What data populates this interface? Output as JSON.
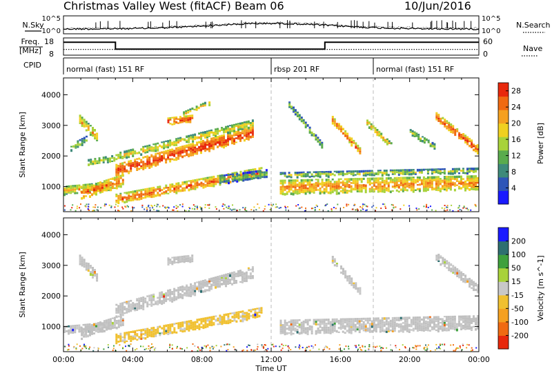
{
  "header": {
    "title": "Christmas Valley West (fitACF)",
    "beam": "Beam 06",
    "date": "10/Jun/2016"
  },
  "noise_panel": {
    "left_label": "N.Sky",
    "right_label": "N.Search",
    "left_ticks": [
      "10^5",
      "10^0"
    ],
    "right_ticks": [
      "10^5",
      "10^0"
    ]
  },
  "freq_panel": {
    "left_label_1": "Freq.",
    "left_label_2": "[MHz]",
    "right_label": "Nave",
    "left_ticks": [
      "18",
      "8"
    ],
    "right_ticks": [
      "60",
      "0"
    ],
    "freq_mhz_segments": [
      {
        "start_h": 0,
        "end_h": 3.0,
        "value": 15.5
      },
      {
        "start_h": 3.0,
        "end_h": 15.1,
        "value": 11.5
      },
      {
        "start_h": 15.1,
        "end_h": 24,
        "value": 15.5
      }
    ],
    "nave_level": 20
  },
  "cpid": {
    "label": "CPID",
    "segments": [
      {
        "label": "normal (fast) 151 RF",
        "start_h": 0,
        "end_h": 12.0
      },
      {
        "label": "rbsp 201 RF",
        "start_h": 12.0,
        "end_h": 17.9
      },
      {
        "label": "normal (fast) 151 RF",
        "start_h": 17.9,
        "end_h": 24
      }
    ]
  },
  "chart_data": [
    {
      "type": "heatmap",
      "name": "power",
      "ylabel": "Slant Range [km]",
      "ylim": [
        180,
        4550
      ],
      "yticks": [
        1000,
        2000,
        3000,
        4000
      ],
      "colorbar_label": "Power [dB]",
      "colorbar_ticks": [
        4,
        8,
        12,
        16,
        20,
        24,
        28
      ],
      "colorbar_range": [
        0,
        30
      ],
      "colors": [
        "#1a1aff",
        "#2e55b8",
        "#3e8a7a",
        "#5aab4d",
        "#a8d23a",
        "#f0d020",
        "#f5a020",
        "#f06a12",
        "#e8280c"
      ],
      "bands": [
        {
          "start_h": 0.0,
          "end_h": 2.8,
          "r_start": 900,
          "r_end": 1050,
          "width": 250,
          "value": 18
        },
        {
          "start_h": 0.9,
          "end_h": 2.0,
          "r_start": 3200,
          "r_end": 2600,
          "width": 300,
          "value": 18
        },
        {
          "start_h": 0.4,
          "end_h": 1.4,
          "r_start": 2300,
          "r_end": 2600,
          "width": 200,
          "value": 12
        },
        {
          "start_h": 1.4,
          "end_h": 3.0,
          "r_start": 1800,
          "r_end": 1950,
          "width": 200,
          "value": 14
        },
        {
          "start_h": 1.0,
          "end_h": 3.5,
          "r_start": 800,
          "r_end": 1250,
          "width": 350,
          "value": 22
        },
        {
          "start_h": 3.0,
          "end_h": 11.0,
          "r_start": 1550,
          "r_end": 2800,
          "width": 380,
          "value": 25
        },
        {
          "start_h": 3.0,
          "end_h": 11.0,
          "r_start": 2000,
          "r_end": 3100,
          "width": 220,
          "value": 16
        },
        {
          "start_h": 3.0,
          "end_h": 11.5,
          "r_start": 620,
          "r_end": 1500,
          "width": 300,
          "value": 22
        },
        {
          "start_h": 6.0,
          "end_h": 7.5,
          "r_start": 3150,
          "r_end": 3250,
          "width": 220,
          "value": 24
        },
        {
          "start_h": 6.9,
          "end_h": 8.5,
          "r_start": 3400,
          "r_end": 3800,
          "width": 120,
          "value": 16
        },
        {
          "start_h": 9.0,
          "end_h": 11.8,
          "r_start": 1250,
          "r_end": 1450,
          "width": 260,
          "value": 10
        },
        {
          "start_h": 12.5,
          "end_h": 24.0,
          "r_start": 1000,
          "r_end": 1150,
          "width": 450,
          "value": 20
        },
        {
          "start_h": 12.5,
          "end_h": 24.0,
          "r_start": 1400,
          "r_end": 1550,
          "width": 150,
          "value": 13
        },
        {
          "start_h": 15.5,
          "end_h": 17.2,
          "r_start": 3200,
          "r_end": 2100,
          "width": 220,
          "value": 22
        },
        {
          "start_h": 17.5,
          "end_h": 19.0,
          "r_start": 3100,
          "r_end": 2300,
          "width": 180,
          "value": 18
        },
        {
          "start_h": 20.0,
          "end_h": 21.5,
          "r_start": 2800,
          "r_end": 2300,
          "width": 160,
          "value": 14
        },
        {
          "start_h": 21.5,
          "end_h": 24.0,
          "r_start": 3300,
          "r_end": 2200,
          "width": 260,
          "value": 24
        },
        {
          "start_h": 13.0,
          "end_h": 15.0,
          "r_start": 3700,
          "r_end": 2300,
          "width": 160,
          "value": 12
        }
      ]
    },
    {
      "type": "heatmap",
      "name": "velocity",
      "ylabel": "Slant Range [km]",
      "ylim": [
        180,
        4550
      ],
      "yticks": [
        1000,
        2000,
        3000,
        4000
      ],
      "colorbar_label": "Velocity [m s^-1]",
      "colorbar_ticks": [
        200,
        100,
        50,
        15,
        -15,
        -50,
        -100,
        -200
      ],
      "colorbar_range": [
        -250,
        250
      ],
      "colors": [
        "#e8280c",
        "#f06a12",
        "#f5a020",
        "#f0c030",
        "#c8c8c8",
        "#a8d23a",
        "#3ea03c",
        "#2e6f70",
        "#1a1aff"
      ],
      "ground_scatter_color": "#c0c0c0",
      "bands": [
        {
          "start_h": 0.0,
          "end_h": 2.8,
          "r_start": 900,
          "r_end": 1050,
          "width": 250,
          "value": 0
        },
        {
          "start_h": 0.9,
          "end_h": 2.0,
          "r_start": 3200,
          "r_end": 2600,
          "width": 300,
          "value": 0
        },
        {
          "start_h": 1.0,
          "end_h": 3.5,
          "r_start": 800,
          "r_end": 1250,
          "width": 350,
          "value": 0
        },
        {
          "start_h": 3.0,
          "end_h": 11.0,
          "r_start": 1550,
          "r_end": 2800,
          "width": 380,
          "value": 0
        },
        {
          "start_h": 3.0,
          "end_h": 11.5,
          "r_start": 620,
          "r_end": 1500,
          "width": 300,
          "value": -40
        },
        {
          "start_h": 6.0,
          "end_h": 7.5,
          "r_start": 3150,
          "r_end": 3250,
          "width": 220,
          "value": 0
        },
        {
          "start_h": 12.5,
          "end_h": 24.0,
          "r_start": 1000,
          "r_end": 1150,
          "width": 450,
          "value": 0
        },
        {
          "start_h": 15.5,
          "end_h": 17.2,
          "r_start": 3200,
          "r_end": 2100,
          "width": 220,
          "value": 0
        },
        {
          "start_h": 21.5,
          "end_h": 24.0,
          "r_start": 3300,
          "r_end": 2200,
          "width": 260,
          "value": 0
        }
      ]
    }
  ],
  "x_axis": {
    "label": "Time UT",
    "ticks": [
      "00:00",
      "04:00",
      "08:00",
      "12:00",
      "16:00",
      "20:00",
      "00:00"
    ],
    "range_h": [
      0,
      24
    ]
  }
}
